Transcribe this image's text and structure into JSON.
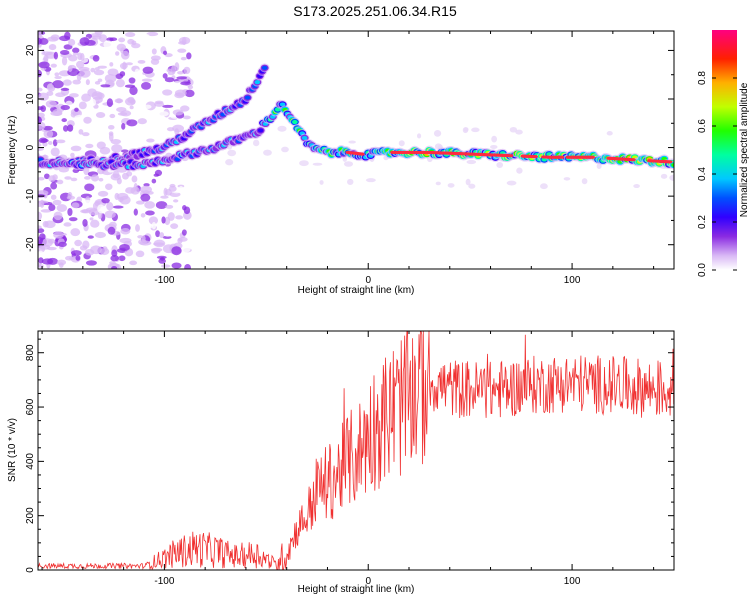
{
  "title": "S173.2025.251.06.34.R15",
  "chart_data": [
    {
      "type": "heatmap",
      "xlabel": "Height of straight line (km)",
      "ylabel": "Frequency (Hz)",
      "xlim": [
        -162,
        150
      ],
      "ylim": [
        -25,
        24
      ],
      "x_ticks": [
        -100,
        0,
        100
      ],
      "y_ticks": [
        -20,
        -10,
        0,
        10,
        20
      ],
      "colorbar": {
        "label": "Normalized spectral amplitude",
        "range": [
          0,
          1
        ],
        "ticks": [
          "0.0",
          "0.2",
          "0.4",
          "0.6",
          "0.8"
        ]
      },
      "ridges": [
        {
          "name": "upper",
          "x": [
            -160,
            -140,
            -120,
            -100,
            -80,
            -60,
            -50
          ],
          "y": [
            -3,
            -3,
            -2,
            0,
            5,
            10,
            17
          ]
        },
        {
          "name": "main",
          "x": [
            -162,
            -130,
            -110,
            -95,
            -75,
            -55,
            -42,
            -35,
            -28,
            -20,
            -10,
            0,
            10,
            30,
            60,
            90,
            110,
            130,
            150
          ],
          "y": [
            -3,
            -3.5,
            -3.5,
            -2,
            0,
            3,
            9,
            4,
            0,
            -1,
            -1,
            -1.5,
            -1,
            -1,
            -1.5,
            -2,
            -2,
            -2.5,
            -3
          ]
        }
      ]
    },
    {
      "type": "line",
      "xlabel": "Height of straight line (km)",
      "ylabel": "SNR (10 * v/v)",
      "xlim": [
        -162,
        150
      ],
      "ylim": [
        0,
        880
      ],
      "x_ticks": [
        -100,
        0,
        100
      ],
      "y_ticks": [
        0,
        200,
        400,
        600,
        800
      ],
      "color": "#f03030",
      "profile": {
        "x": [
          -162,
          -110,
          -105,
          -95,
          -85,
          -75,
          -65,
          -55,
          -50,
          -45,
          -40,
          -35,
          -30,
          -25,
          -20,
          -15,
          -10,
          -5,
          0,
          5,
          10,
          15,
          20,
          25,
          30,
          40,
          60,
          80,
          100,
          120,
          150
        ],
        "y": [
          15,
          15,
          30,
          60,
          80,
          70,
          50,
          60,
          40,
          20,
          60,
          150,
          200,
          300,
          320,
          350,
          400,
          430,
          500,
          540,
          570,
          600,
          640,
          670,
          690,
          670,
          660,
          680,
          690,
          680,
          660
        ]
      }
    }
  ]
}
